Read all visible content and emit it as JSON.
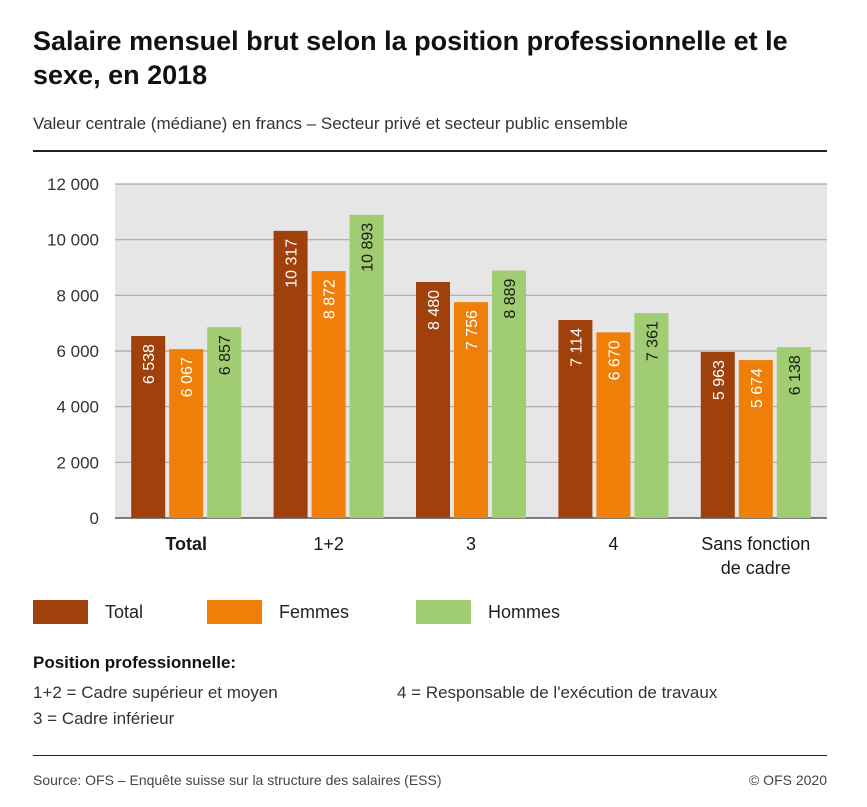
{
  "header": {
    "title": "Salaire mensuel brut selon la position professionnelle et le sexe, en 2018",
    "subtitle": "Valeur centrale (médiane) en francs – Secteur privé et secteur public ensemble"
  },
  "chart_data": {
    "type": "bar",
    "categories": [
      "Total",
      "1+2",
      "3",
      "4",
      "Sans fonction de cadre"
    ],
    "category_lines": [
      [
        "Total"
      ],
      [
        "1+2"
      ],
      [
        "3"
      ],
      [
        "4"
      ],
      [
        "Sans fonction",
        "de cadre"
      ]
    ],
    "bold_category": "Total",
    "series": [
      {
        "name": "Total",
        "color": "#a0400a",
        "values": [
          6538,
          10317,
          8480,
          7114,
          5963
        ],
        "labels": [
          "6 538",
          "10 317",
          "8 480",
          "7 114",
          "5 963"
        ]
      },
      {
        "name": "Femmes",
        "color": "#f07f0a",
        "values": [
          6067,
          8872,
          7756,
          6670,
          5674
        ],
        "labels": [
          "6 067",
          "8 872",
          "7 756",
          "6 670",
          "5 674"
        ]
      },
      {
        "name": "Hommes",
        "color": "#a0cc72",
        "values": [
          6857,
          10893,
          8889,
          7361,
          6138
        ],
        "labels": [
          "6 857",
          "10 893",
          "8 889",
          "7 361",
          "6 138"
        ]
      }
    ],
    "ylim": [
      0,
      12000
    ],
    "yticks": [
      0,
      2000,
      4000,
      6000,
      8000,
      10000,
      12000
    ],
    "ytick_labels": [
      "0",
      "2 000",
      "4 000",
      "6 000",
      "8 000",
      "10 000",
      "12 000"
    ],
    "grid": true,
    "plot_background": "#e6e6e6",
    "legend_position": "bottom"
  },
  "notes": {
    "title": "Position professionnelle:",
    "items": [
      "1+2 = Cadre supérieur et moyen",
      "4 = Responsable de l'exécution de travaux",
      "3 = Cadre inférieur"
    ]
  },
  "footer": {
    "source": "Source: OFS – Enquête suisse sur la structure des salaires (ESS)",
    "copyright": "© OFS 2020"
  }
}
